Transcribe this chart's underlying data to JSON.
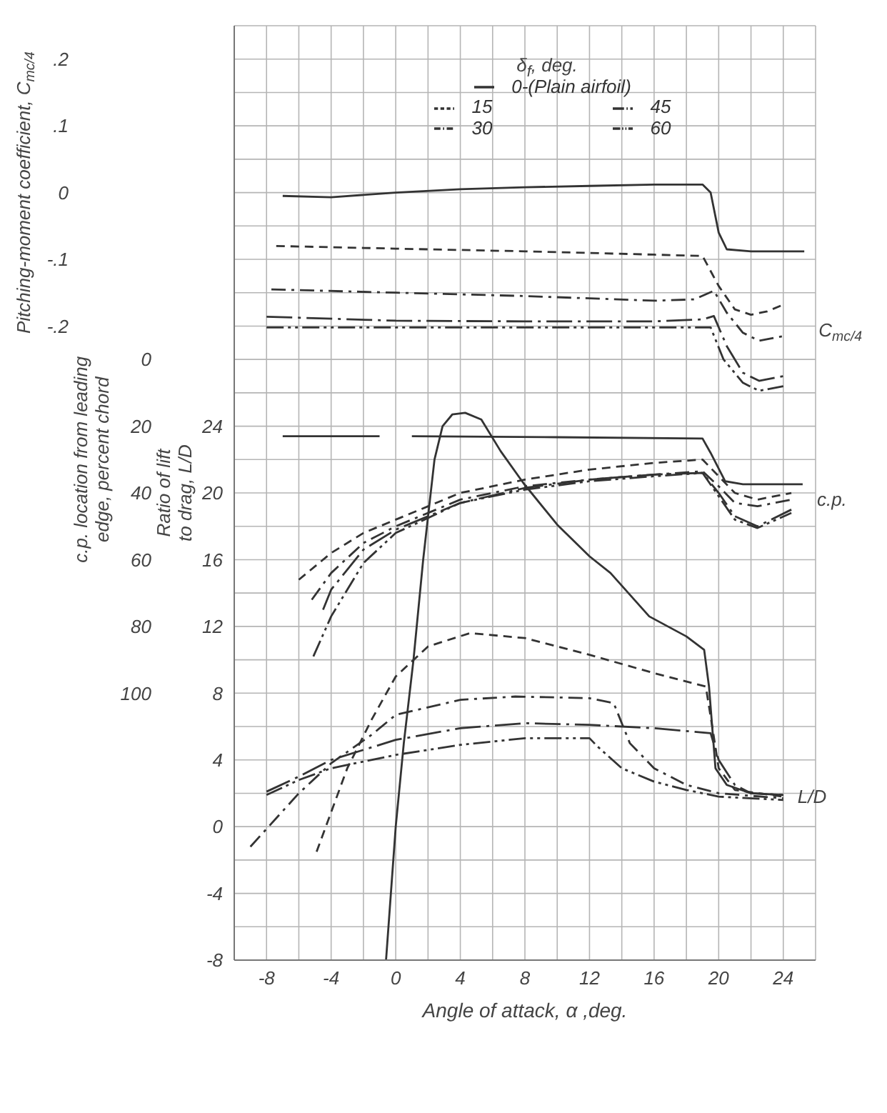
{
  "chart_data": {
    "type": "line",
    "xlabel": "Angle of attack, α ,deg.",
    "ylabel": "Ratio of lift to drag, L/D",
    "y2label": "c.p. location from leading edge, percent chord",
    "y3label": "Pitching-moment coefficient, C$_{mc/4}$",
    "legend_title": "δ$_{f}$, deg.",
    "legend": "top",
    "grid": true,
    "marker": "none",
    "xlim": [
      -10,
      26
    ],
    "xticks": [
      {
        "value": -10,
        "label": null
      },
      -8,
      {
        "value": -6,
        "label": null
      },
      -4,
      {
        "value": -2,
        "label": null
      },
      0,
      {
        "value": 2,
        "label": null
      },
      4,
      {
        "value": 6,
        "label": null
      },
      8,
      {
        "value": 10,
        "label": null
      },
      12,
      {
        "value": 14,
        "label": null
      },
      16,
      {
        "value": 18,
        "label": null
      },
      20,
      {
        "value": 22,
        "label": null
      },
      24,
      {
        "value": 26,
        "label": null
      }
    ],
    "ylim": [
      -8,
      48
    ],
    "yticks": [
      -8,
      {
        "value": -6,
        "label": null
      },
      -4,
      {
        "value": -2,
        "label": null
      },
      0,
      {
        "value": 2,
        "label": null
      },
      4,
      {
        "value": 6,
        "label": null
      },
      8,
      {
        "value": 10,
        "label": null
      },
      12,
      {
        "value": 14,
        "label": null
      },
      16,
      {
        "value": 18,
        "label": null
      },
      20,
      {
        "value": 22,
        "label": null
      },
      24,
      {
        "value": 26,
        "label": null
      },
      {
        "value": 28,
        "label": null
      },
      {
        "value": 30,
        "label": null
      },
      {
        "value": 32,
        "label": null
      },
      {
        "value": 34,
        "label": null
      },
      {
        "value": 36,
        "label": null
      },
      {
        "value": 38,
        "label": null
      },
      {
        "value": 40,
        "label": null
      },
      {
        "value": 42,
        "label": null
      },
      {
        "value": 44,
        "label": null
      },
      {
        "value": 46,
        "label": null
      },
      {
        "value": 48,
        "label": null
      }
    ],
    "y2lim": [
      180,
      -100
    ],
    "y2ticks": [
      0,
      20,
      40,
      60,
      80,
      100
    ],
    "y3lim": [
      -1.15,
      0.25
    ],
    "y3ticks": [
      {
        "value": 0.2,
        "label": ".2"
      },
      {
        "value": 0.1,
        "label": ".1"
      },
      0,
      {
        "value": -0.1,
        "label": "-.1"
      },
      {
        "value": -0.2,
        "label": "-.2"
      }
    ],
    "annotations": [
      "C$_{mc/4}$",
      "c.p.",
      "L/D"
    ],
    "series": [
      {
        "name": "0-(Plain airfoil)",
        "color": "#333333",
        "axis": "y3",
        "line_style": "solid",
        "x": [
          -7,
          -4,
          0,
          4,
          8,
          12,
          16,
          19,
          19.5,
          20,
          20.5,
          22,
          24,
          25.3
        ],
        "values": [
          -0.005,
          -0.007,
          0,
          0.005,
          0.008,
          0.01,
          0.012,
          0.012,
          0,
          -0.06,
          -0.085,
          -0.088,
          -0.088,
          -0.088
        ]
      },
      {
        "name": "15",
        "color": "#333333",
        "axis": "y3",
        "line_style": "dashed",
        "x": [
          -7.4,
          0,
          8,
          16,
          19,
          20,
          21,
          22,
          23,
          24
        ],
        "values": [
          -0.08,
          -0.084,
          -0.088,
          -0.093,
          -0.095,
          -0.14,
          -0.175,
          -0.183,
          -0.178,
          -0.168
        ]
      },
      {
        "name": "30",
        "color": "#333333",
        "axis": "y3",
        "line_style": "dashdot",
        "x": [
          -7.7,
          0,
          8,
          16,
          18.5,
          19.7,
          20.5,
          21.5,
          22.5,
          24
        ],
        "values": [
          -0.145,
          -0.15,
          -0.155,
          -0.162,
          -0.16,
          -0.147,
          -0.18,
          -0.21,
          -0.222,
          -0.215
        ]
      },
      {
        "name": "45",
        "color": "#333333",
        "axis": "y3",
        "line_style": "longdashdot",
        "x": [
          -8,
          0,
          8,
          16,
          19,
          19.7,
          20.5,
          21.5,
          22.5,
          24
        ],
        "values": [
          -0.186,
          -0.192,
          -0.193,
          -0.193,
          -0.19,
          -0.185,
          -0.23,
          -0.27,
          -0.282,
          -0.275
        ]
      },
      {
        "name": "60",
        "color": "#333333",
        "axis": "y3",
        "line_style": "dashdotdot",
        "x": [
          -8,
          0,
          8,
          16,
          19.5,
          20.3,
          21.5,
          22.5,
          24
        ],
        "values": [
          -0.202,
          -0.202,
          -0.202,
          -0.202,
          -0.202,
          -0.25,
          -0.285,
          -0.297,
          -0.29
        ]
      },
      {
        "color": "#333333",
        "axis": "y2",
        "line_style": "solid",
        "x": [
          -7,
          -1,
          0,
          1,
          10,
          19,
          19.5,
          20.4,
          21.5,
          25.2
        ],
        "values": [
          23,
          23,
          null,
          23,
          23.3,
          23.7,
          28,
          36.5,
          37.4,
          37.4
        ]
      },
      {
        "color": "#333333",
        "axis": "y2",
        "line_style": "dashed",
        "x": [
          -6,
          -4,
          -2,
          0,
          4,
          8,
          12,
          16,
          19,
          20,
          21,
          22.4,
          24.5
        ],
        "values": [
          66,
          58,
          52,
          48,
          40,
          36,
          33,
          31,
          30,
          35,
          40,
          42,
          40
        ]
      },
      {
        "color": "#333333",
        "axis": "y2",
        "line_style": "dashdot",
        "x": [
          -5.2,
          -4,
          -2,
          0,
          4,
          8,
          12,
          16,
          19,
          20,
          21,
          22.4,
          24.5
        ],
        "values": [
          72,
          64,
          55,
          50,
          42,
          38,
          36,
          34.5,
          33.5,
          38,
          43,
          44,
          42
        ]
      },
      {
        "color": "#333333",
        "axis": "y2",
        "line_style": "longdashdot",
        "x": [
          -4.5,
          -4,
          -2,
          0,
          4,
          8,
          12,
          16,
          19,
          20,
          21,
          22.4,
          24.5
        ],
        "values": [
          75,
          69,
          57,
          51,
          43,
          38.5,
          36,
          34.5,
          34,
          40,
          47,
          50,
          45
        ]
      },
      {
        "color": "#333333",
        "axis": "y2",
        "line_style": "dashdotdot",
        "x": [
          -5.1,
          -4,
          -2,
          0,
          4,
          8,
          12,
          16,
          19,
          20,
          21,
          22.4,
          24.5
        ],
        "values": [
          89,
          77,
          61,
          52,
          43,
          39,
          36.5,
          35,
          34,
          41,
          48,
          50.5,
          46
        ]
      },
      {
        "color": "#333333",
        "line_style": "solid",
        "x": [
          -0.6,
          0,
          0.5,
          1.1,
          1.7,
          2.4,
          2.9,
          3.5,
          4.3,
          5.3,
          6.5,
          7.9,
          10,
          12,
          13.3,
          15.7,
          18,
          19.1,
          19.4,
          19.8,
          20.5,
          22,
          24
        ],
        "values": [
          -8,
          0,
          5,
          10,
          16,
          22,
          24,
          24.7,
          24.8,
          24.4,
          22.5,
          20.6,
          18.1,
          16.2,
          15.2,
          12.6,
          11.4,
          10.6,
          8.4,
          3.5,
          2.5,
          2,
          1.9
        ]
      },
      {
        "color": "#333333",
        "line_style": "dashed",
        "x": [
          -4.9,
          -3,
          -1.5,
          0,
          2,
          4.6,
          8,
          12,
          16,
          19.2,
          19.6,
          20,
          21,
          24
        ],
        "values": [
          -1.5,
          3.5,
          6.4,
          9,
          10.8,
          11.6,
          11.3,
          10.3,
          9.2,
          8.4,
          6,
          3.5,
          2.2,
          1.8
        ]
      },
      {
        "color": "#333333",
        "line_style": "dashdot",
        "x": [
          -9,
          -6,
          -4,
          -1.5,
          0,
          4,
          7.4,
          12,
          13.5,
          14.5,
          16,
          18,
          20,
          24
        ],
        "values": [
          -1.2,
          2,
          3.8,
          5.5,
          6.7,
          7.6,
          7.8,
          7.7,
          7.4,
          5,
          3.5,
          2.5,
          2,
          1.7
        ]
      },
      {
        "color": "#333333",
        "line_style": "longdashdot",
        "x": [
          -8,
          -6,
          -4,
          0,
          4,
          8,
          12,
          16,
          19.5,
          20,
          21,
          22,
          24
        ],
        "values": [
          2.1,
          3,
          4,
          5.2,
          5.9,
          6.2,
          6.1,
          5.9,
          5.6,
          4,
          2.5,
          2,
          1.9
        ]
      },
      {
        "color": "#333333",
        "line_style": "dashdotdot",
        "x": [
          -8,
          -6,
          -4,
          0,
          4,
          8,
          12,
          12.5,
          14,
          16,
          18,
          20,
          24
        ],
        "values": [
          1.9,
          2.8,
          3.5,
          4.3,
          4.9,
          5.3,
          5.3,
          4.8,
          3.5,
          2.7,
          2.2,
          1.8,
          1.6
        ]
      }
    ]
  }
}
